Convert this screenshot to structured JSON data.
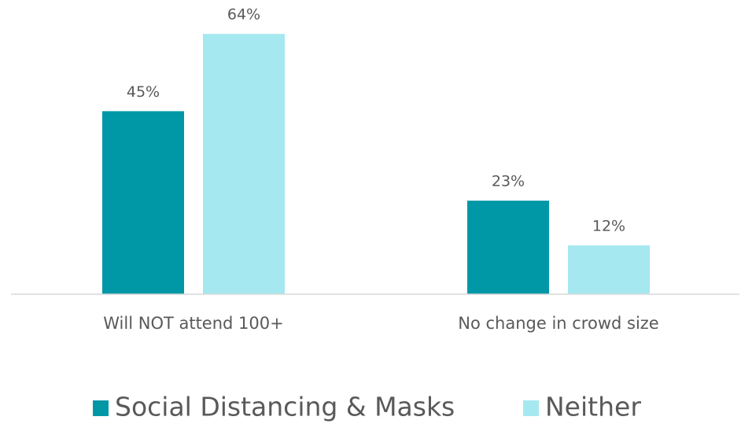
{
  "chart_data": {
    "type": "bar",
    "categories": [
      "Will NOT attend 100+",
      "No change in crowd size"
    ],
    "series": [
      {
        "name": "Social Distancing & Masks",
        "color": "#0097a7",
        "values": [
          45,
          23
        ],
        "value_labels": [
          "45%",
          "23%"
        ]
      },
      {
        "name": "Neither",
        "color": "#a5e8f0",
        "values": [
          64,
          12
        ],
        "value_labels": [
          "64%",
          "12%"
        ]
      }
    ],
    "legend": "bottom"
  }
}
